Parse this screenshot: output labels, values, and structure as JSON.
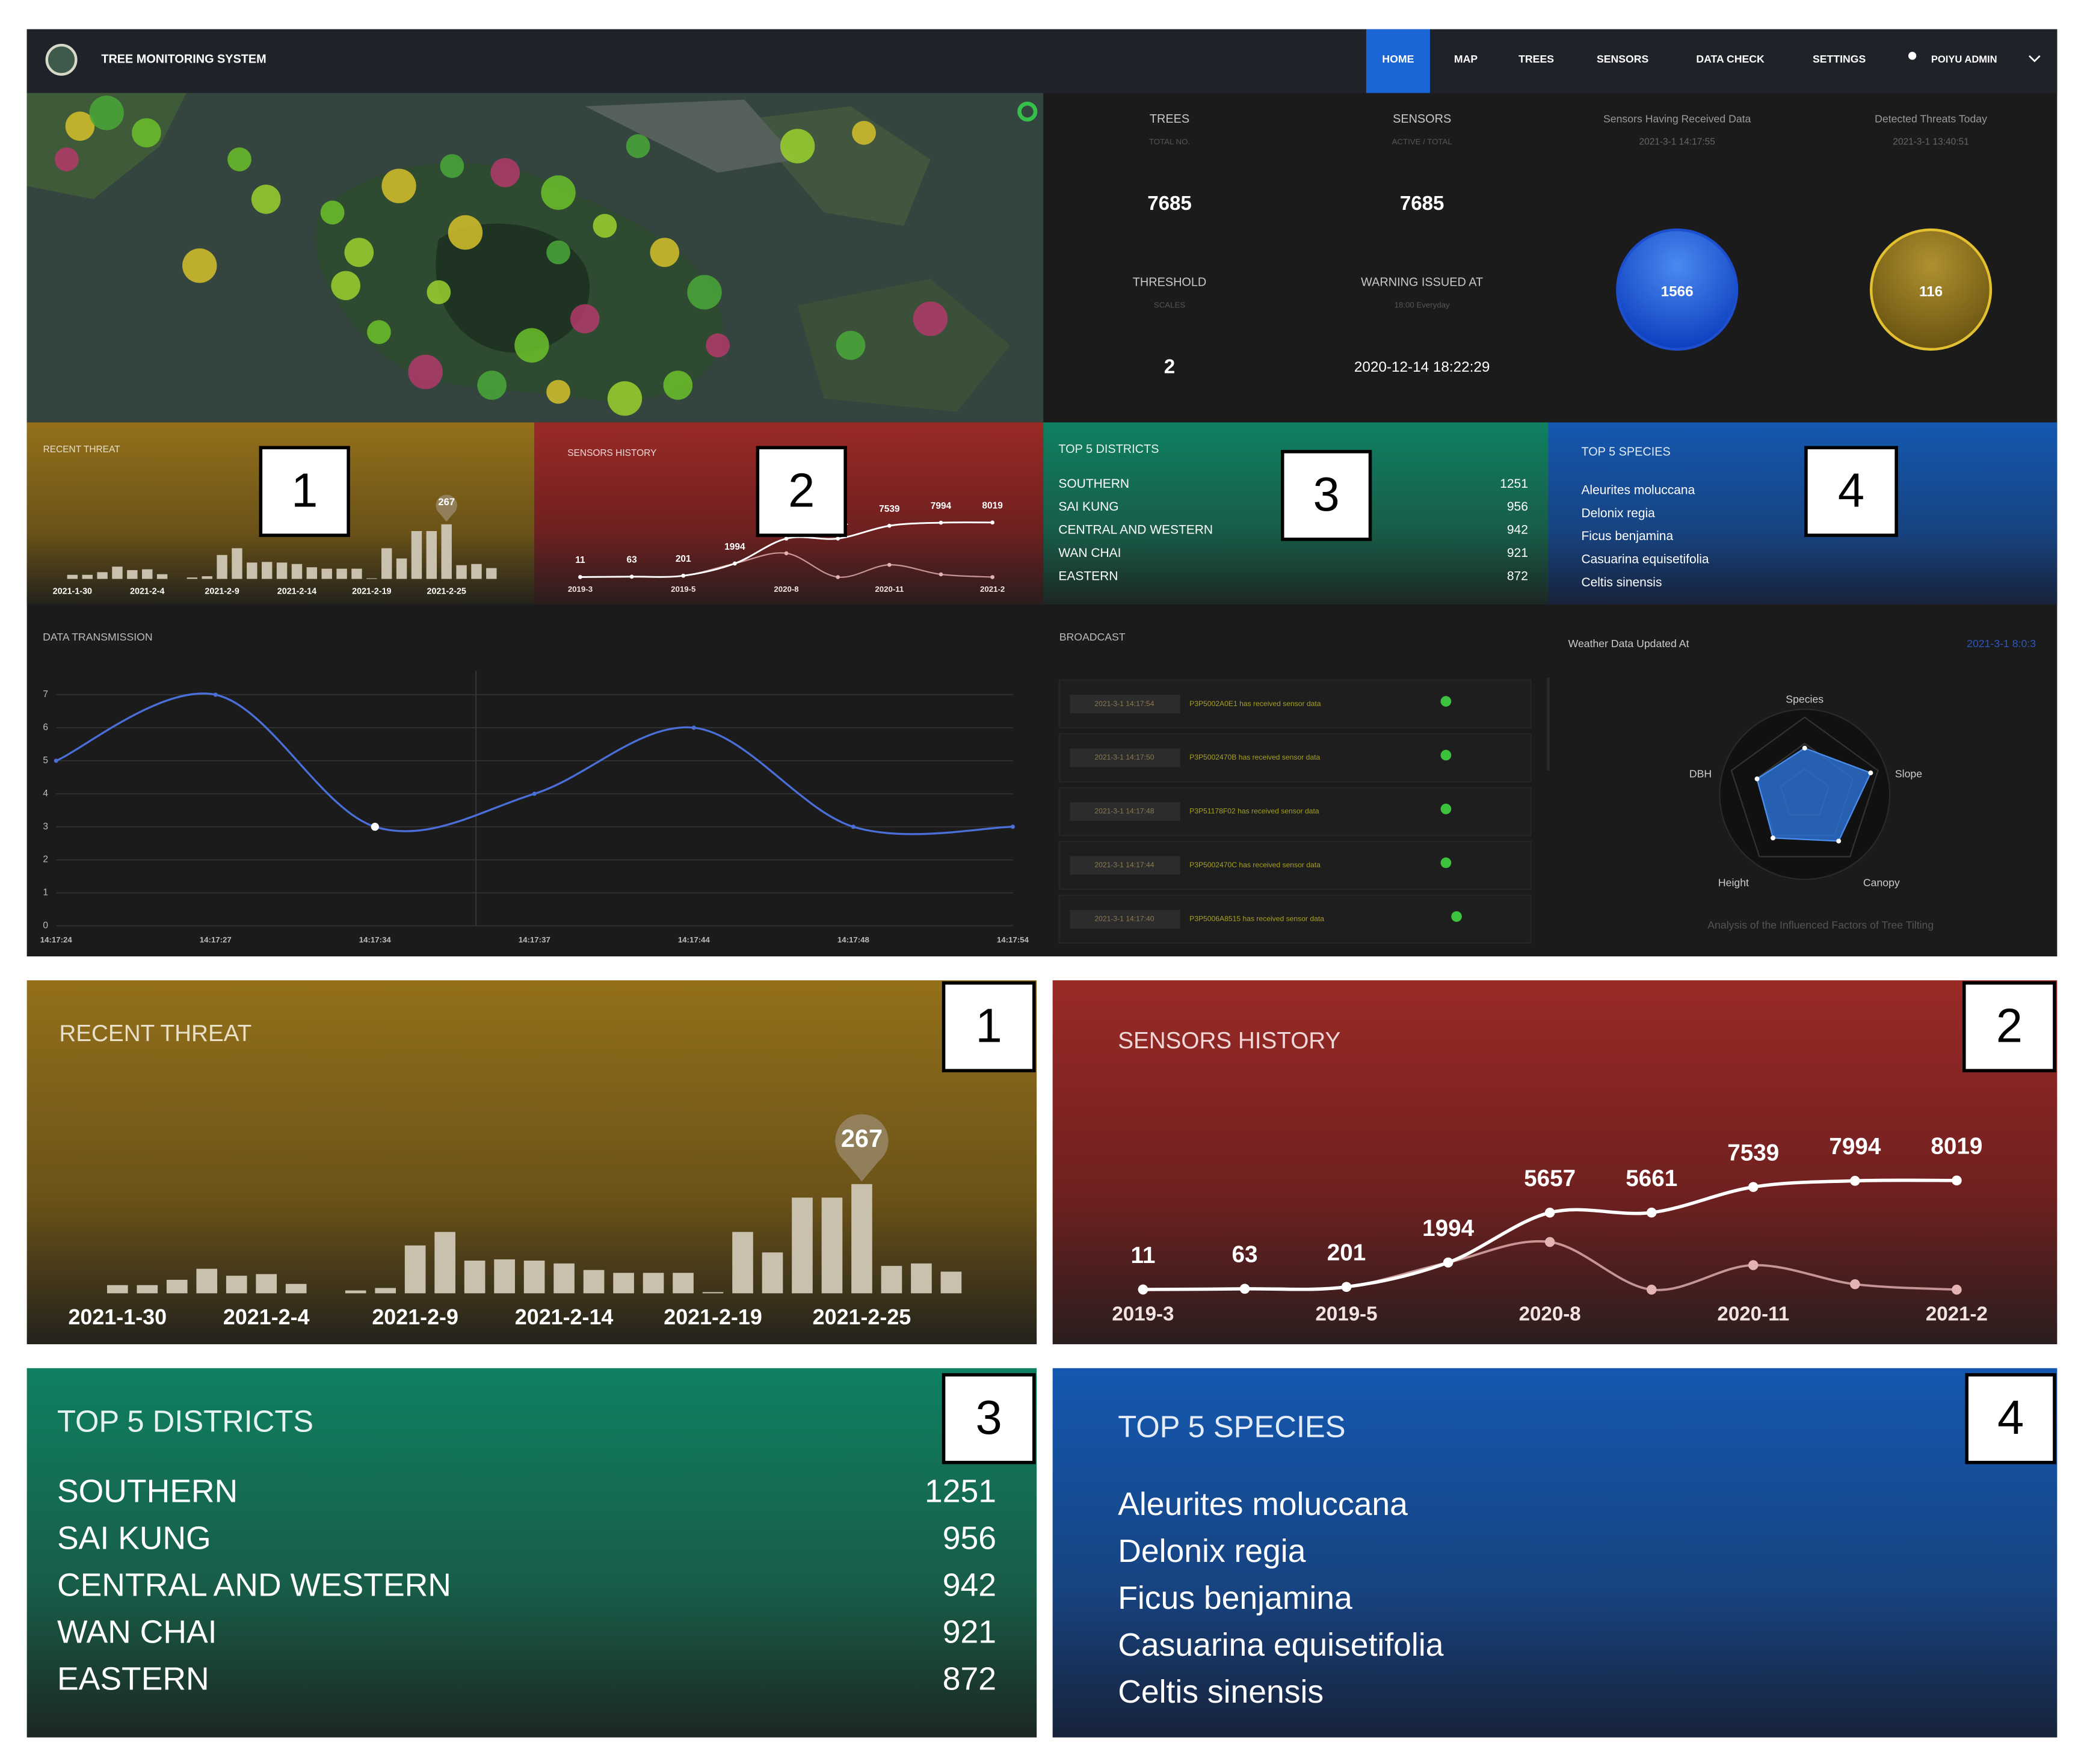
{
  "nav": {
    "title": "TREE MONITORING SYSTEM",
    "items": [
      "HOME",
      "MAP",
      "TREES",
      "SENSORS",
      "DATA CHECK",
      "SETTINGS"
    ],
    "user": "POIYU ADMIN"
  },
  "stats": {
    "trees": {
      "label": "TREES",
      "sublabel": "TOTAL NO.",
      "value": 7685
    },
    "sensors": {
      "label": "SENSORS",
      "sublabel": "ACTIVE / TOTAL",
      "value": 7685
    },
    "threshold": {
      "label": "THRESHOLD",
      "sublabel": "SCALES",
      "value": 2
    },
    "warning": {
      "label": "WARNING ISSUED AT",
      "sublabel": "18:00 Everyday",
      "value": "2020-12-14 18:22:29"
    },
    "received": {
      "label": "Sensors Having Received Data",
      "time": "2021-3-1 14:17:55",
      "value": 1566
    },
    "threats": {
      "label": "Detected Threats Today",
      "time": "2021-3-1 13:40:51",
      "value": 116
    }
  },
  "recent_threat": {
    "title": "RECENT THREAT",
    "categories": [
      "2021-1-30",
      null,
      null,
      null,
      null,
      "2021-2-4",
      null,
      null,
      null,
      null,
      "2021-2-9",
      null,
      null,
      null,
      null,
      "2021-2-14",
      null,
      null,
      null,
      null,
      "2021-2-19",
      null,
      null,
      null,
      null,
      "2021-2-25",
      null,
      null,
      null
    ],
    "values": [
      20,
      20,
      33,
      60,
      43,
      47,
      23,
      0,
      7,
      13,
      117,
      150,
      80,
      83,
      80,
      73,
      57,
      50,
      50,
      50,
      3,
      150,
      100,
      234,
      234,
      267,
      67,
      73,
      53
    ],
    "color": "#c9c0ad"
  },
  "sensors_history": {
    "title": "SENSORS HISTORY",
    "categories": [
      "2019-3",
      null,
      "2019-5",
      null,
      "2020-8",
      null,
      "2020-11",
      null,
      "2021-2"
    ],
    "series": [
      {
        "color": "#ffffff",
        "values": [
          11,
          63,
          201,
          1994,
          5657,
          5661,
          7539,
          7994,
          8019
        ]
      },
      {
        "color": "#e6b3b3",
        "values": [
          11,
          63,
          201,
          1994,
          3500,
          0,
          1800,
          400,
          0
        ]
      }
    ]
  },
  "top_districts": {
    "title": "TOP 5 DISTRICTS",
    "rows": [
      [
        "SOUTHERN",
        1251
      ],
      [
        "SAI KUNG",
        956
      ],
      [
        "CENTRAL AND WESTERN",
        942
      ],
      [
        "WAN CHAI",
        921
      ],
      [
        "EASTERN",
        872
      ]
    ]
  },
  "top_species": {
    "title": "TOP 5 SPECIES",
    "items": [
      "Aleurites moluccana",
      "Delonix regia",
      "Ficus benjamina",
      "Casuarina equisetifolia",
      "Celtis sinensis"
    ]
  },
  "data_transmission": {
    "title": "DATA TRANSMISSION",
    "categories": [
      "14:17:24",
      "14:17:27",
      "14:17:34",
      "14:17:37",
      "14:17:44",
      "14:17:48",
      "14:17:54"
    ],
    "values": [
      5,
      7,
      3,
      4,
      6,
      3,
      3
    ],
    "ylim": [
      0,
      7
    ],
    "yticks": [
      0,
      1,
      2,
      3,
      4,
      5,
      6,
      7
    ],
    "color": "#4a6fd8",
    "grid": true
  },
  "broadcast": {
    "title": "BROADCAST",
    "messages": [
      {
        "time": "2021-3-1 14:17:54",
        "text": "P3P5002A0E1 has received sensor data"
      },
      {
        "time": "2021-3-1 14:17:50",
        "text": "P3P5002470B has received sensor data"
      },
      {
        "time": "2021-3-1 14:17:48",
        "text": "P3P51178F02 has received sensor data"
      },
      {
        "time": "2021-3-1 14:17:44",
        "text": "P3P5002470C has received sensor data"
      },
      {
        "time": "2021-3-1 14:17:40",
        "text": "P3P5006A8515 has received sensor data"
      }
    ]
  },
  "weather": {
    "label": "Weather Data Updated At",
    "time": "2021-3-1 8:0:3"
  },
  "radar": {
    "indicators": [
      "Species",
      "Slope",
      "Canopy",
      "Height",
      "DBH"
    ],
    "values": [
      0.6,
      0.9,
      0.75,
      0.7,
      0.65
    ],
    "caption": "Analysis of the Influenced Factors of Tree Tilting"
  },
  "callouts": [
    "1",
    "2",
    "3",
    "4"
  ]
}
